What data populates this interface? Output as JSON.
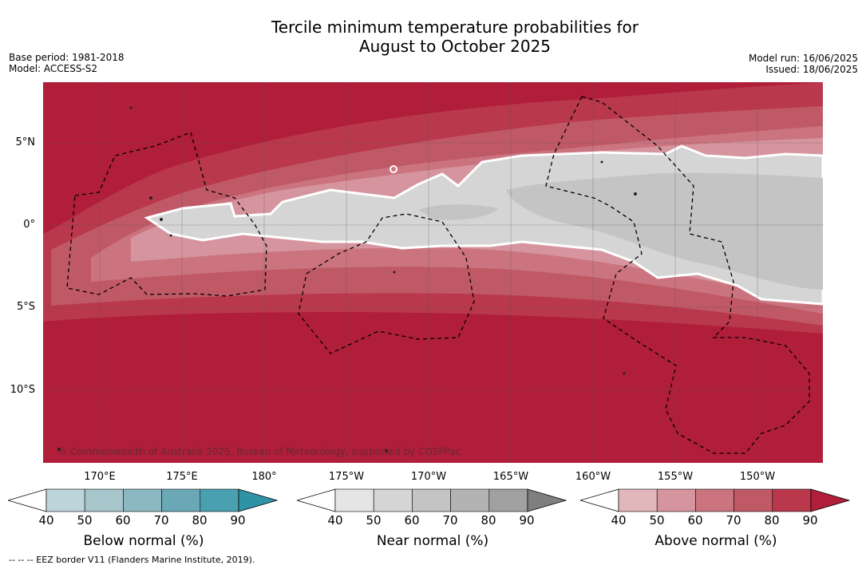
{
  "title_line1": "Tercile minimum temperature probabilities for",
  "title_line2": "August to October 2025",
  "base_period": "Base period: 1981-2018",
  "model": "Model: ACCESS-S2",
  "model_run": "Model run: 16/06/2025",
  "issued": "Issued: 18/06/2025",
  "lat_labels": [
    "5°N",
    "0°",
    "5°S",
    "10°S"
  ],
  "lon_labels": [
    "170°E",
    "175°E",
    "180°",
    "175°W",
    "170°W",
    "165°W",
    "160°W",
    "155°W",
    "150°W"
  ],
  "copyright": "© Commonwealth of Australia 2025, Bureau of Meteorology, supported by COSPPac",
  "footnote": "--  --  -- EEZ border V11 (Flanders Marine Institute, 2019).",
  "colorbars": [
    {
      "title": "Below normal (%)",
      "ticks": [
        "40",
        "50",
        "60",
        "70",
        "80",
        "90"
      ],
      "colors": [
        "#bcd4da",
        "#a6c6cc",
        "#8bb8c1",
        "#6aa8b6",
        "#48a0b0",
        "#2f93a6"
      ]
    },
    {
      "title": "Near normal (%)",
      "ticks": [
        "40",
        "50",
        "60",
        "70",
        "80",
        "90"
      ],
      "colors": [
        "#e5e5e5",
        "#d5d5d5",
        "#c4c4c4",
        "#b3b3b3",
        "#a1a1a1",
        "#7f7f7f"
      ]
    },
    {
      "title": "Above normal (%)",
      "ticks": [
        "40",
        "50",
        "60",
        "70",
        "80",
        "90"
      ],
      "colors": [
        "#e1b7bc",
        "#d6959e",
        "#cb747f",
        "#c05966",
        "#b9384b",
        "#b01e3a"
      ]
    }
  ],
  "map_colors": {
    "above_90": "#b01e3a",
    "above_80": "#b9384b",
    "above_70": "#c05966",
    "above_60": "#cb747f",
    "above_50": "#d6959e",
    "near_50": "#d5d5d5",
    "near_60": "#c4c4c4"
  }
}
